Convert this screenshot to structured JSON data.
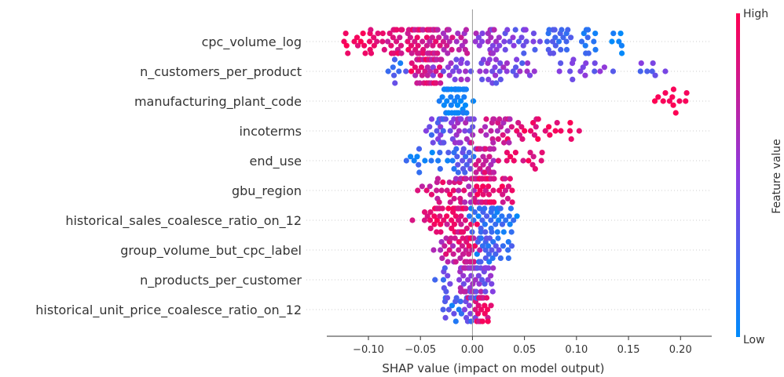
{
  "chart_data": {
    "type": "scatter",
    "subtype": "shap-beeswarm",
    "xlabel": "SHAP value (impact on model output)",
    "xlim": [
      -0.14,
      0.23
    ],
    "xticks": [
      -0.1,
      -0.05,
      0.0,
      0.05,
      0.1,
      0.15,
      0.2
    ],
    "xtick_labels": [
      "−0.10",
      "−0.05",
      "0.00",
      "0.05",
      "0.10",
      "0.15",
      "0.20"
    ],
    "colorbar": {
      "label": "Feature value",
      "high_label": "High",
      "low_label": "Low",
      "high_color": "#ff0052",
      "low_color": "#008bfb"
    },
    "grid": "dotted horizontal row guides",
    "features": [
      {
        "name": "cpc_volume_log",
        "clusters": [
          {
            "c": -0.115,
            "s": 0.006,
            "n": 10,
            "v": [
              0.85,
              1.0
            ]
          },
          {
            "c": -0.09,
            "s": 0.01,
            "n": 18,
            "v": [
              0.8,
              0.95
            ]
          },
          {
            "c": -0.065,
            "s": 0.009,
            "n": 24,
            "v": [
              0.75,
              0.95
            ]
          },
          {
            "c": -0.042,
            "s": 0.008,
            "n": 40,
            "v": [
              0.7,
              0.95
            ]
          },
          {
            "c": -0.018,
            "s": 0.009,
            "n": 26,
            "v": [
              0.55,
              0.85
            ]
          },
          {
            "c": 0.015,
            "s": 0.01,
            "n": 24,
            "v": [
              0.4,
              0.7
            ]
          },
          {
            "c": 0.05,
            "s": 0.012,
            "n": 18,
            "v": [
              0.25,
              0.5
            ]
          },
          {
            "c": 0.078,
            "s": 0.01,
            "n": 20,
            "v": [
              0.15,
              0.35
            ]
          },
          {
            "c": 0.108,
            "s": 0.01,
            "n": 12,
            "v": [
              0.05,
              0.25
            ]
          },
          {
            "c": 0.14,
            "s": 0.005,
            "n": 6,
            "v": [
              0.0,
              0.1
            ]
          }
        ]
      },
      {
        "name": "n_customers_per_product",
        "clusters": [
          {
            "c": -0.07,
            "s": 0.01,
            "n": 8,
            "v": [
              0.05,
              0.4
            ]
          },
          {
            "c": -0.042,
            "s": 0.008,
            "n": 45,
            "v": [
              0.65,
              1.0
            ]
          },
          {
            "c": -0.018,
            "s": 0.008,
            "n": 16,
            "v": [
              0.3,
              0.6
            ]
          },
          {
            "c": 0.015,
            "s": 0.01,
            "n": 20,
            "v": [
              0.3,
              0.65
            ]
          },
          {
            "c": 0.045,
            "s": 0.008,
            "n": 12,
            "v": [
              0.25,
              0.6
            ]
          },
          {
            "c": 0.11,
            "s": 0.012,
            "n": 14,
            "v": [
              0.3,
              0.55
            ]
          },
          {
            "c": 0.165,
            "s": 0.012,
            "n": 8,
            "v": [
              0.25,
              0.5
            ]
          }
        ]
      },
      {
        "name": "manufacturing_plant_code",
        "clusters": [
          {
            "c": -0.015,
            "s": 0.006,
            "n": 45,
            "v": [
              0.0,
              0.12
            ]
          },
          {
            "c": 0.195,
            "s": 0.008,
            "n": 12,
            "v": [
              0.95,
              1.0
            ]
          }
        ]
      },
      {
        "name": "incoterms",
        "clusters": [
          {
            "c": -0.03,
            "s": 0.008,
            "n": 30,
            "v": [
              0.2,
              0.55
            ]
          },
          {
            "c": -0.008,
            "s": 0.007,
            "n": 26,
            "v": [
              0.35,
              0.7
            ]
          },
          {
            "c": 0.02,
            "s": 0.01,
            "n": 24,
            "v": [
              0.6,
              0.85
            ]
          },
          {
            "c": 0.05,
            "s": 0.01,
            "n": 16,
            "v": [
              0.8,
              1.0
            ]
          },
          {
            "c": 0.085,
            "s": 0.01,
            "n": 10,
            "v": [
              0.85,
              1.0
            ]
          }
        ]
      },
      {
        "name": "end_use",
        "clusters": [
          {
            "c": -0.04,
            "s": 0.012,
            "n": 14,
            "v": [
              0.0,
              0.25
            ]
          },
          {
            "c": -0.008,
            "s": 0.008,
            "n": 20,
            "v": [
              0.1,
              0.4
            ]
          },
          {
            "c": 0.012,
            "s": 0.006,
            "n": 30,
            "v": [
              0.6,
              0.95
            ]
          },
          {
            "c": 0.04,
            "s": 0.01,
            "n": 12,
            "v": [
              0.7,
              1.0
            ]
          },
          {
            "c": 0.062,
            "s": 0.004,
            "n": 3,
            "v": [
              0.8,
              1.0
            ]
          }
        ]
      },
      {
        "name": "gbu_region",
        "clusters": [
          {
            "c": -0.03,
            "s": 0.01,
            "n": 20,
            "v": [
              0.7,
              1.0
            ]
          },
          {
            "c": -0.008,
            "s": 0.008,
            "n": 24,
            "v": [
              0.6,
              0.9
            ]
          },
          {
            "c": 0.012,
            "s": 0.008,
            "n": 40,
            "v": [
              0.75,
              1.0
            ]
          },
          {
            "c": 0.03,
            "s": 0.008,
            "n": 10,
            "v": [
              0.75,
              1.0
            ]
          }
        ]
      },
      {
        "name": "historical_sales_coalesce_ratio_on_12",
        "clusters": [
          {
            "c": -0.035,
            "s": 0.008,
            "n": 22,
            "v": [
              0.8,
              1.0
            ]
          },
          {
            "c": -0.012,
            "s": 0.006,
            "n": 30,
            "v": [
              0.75,
              1.0
            ]
          },
          {
            "c": 0.012,
            "s": 0.008,
            "n": 30,
            "v": [
              0.0,
              0.3
            ]
          },
          {
            "c": 0.032,
            "s": 0.006,
            "n": 12,
            "v": [
              0.0,
              0.2
            ]
          }
        ]
      },
      {
        "name": "group_volume_but_cpc_label",
        "clusters": [
          {
            "c": -0.025,
            "s": 0.007,
            "n": 16,
            "v": [
              0.6,
              0.9
            ]
          },
          {
            "c": -0.005,
            "s": 0.006,
            "n": 28,
            "v": [
              0.7,
              1.0
            ]
          },
          {
            "c": 0.015,
            "s": 0.007,
            "n": 24,
            "v": [
              0.05,
              0.4
            ]
          },
          {
            "c": 0.032,
            "s": 0.004,
            "n": 6,
            "v": [
              0.1,
              0.4
            ]
          }
        ]
      },
      {
        "name": "n_products_per_customer",
        "clusters": [
          {
            "c": -0.025,
            "s": 0.005,
            "n": 8,
            "v": [
              0.2,
              0.5
            ]
          },
          {
            "c": -0.005,
            "s": 0.006,
            "n": 28,
            "v": [
              0.35,
              0.75
            ]
          },
          {
            "c": 0.012,
            "s": 0.005,
            "n": 20,
            "v": [
              0.3,
              0.7
            ]
          }
        ]
      },
      {
        "name": "historical_unit_price_coalesce_ratio_on_12",
        "clusters": [
          {
            "c": -0.025,
            "s": 0.005,
            "n": 8,
            "v": [
              0.05,
              0.4
            ]
          },
          {
            "c": -0.008,
            "s": 0.005,
            "n": 22,
            "v": [
              0.1,
              0.5
            ]
          },
          {
            "c": 0.008,
            "s": 0.005,
            "n": 30,
            "v": [
              0.75,
              1.0
            ]
          }
        ]
      }
    ]
  }
}
